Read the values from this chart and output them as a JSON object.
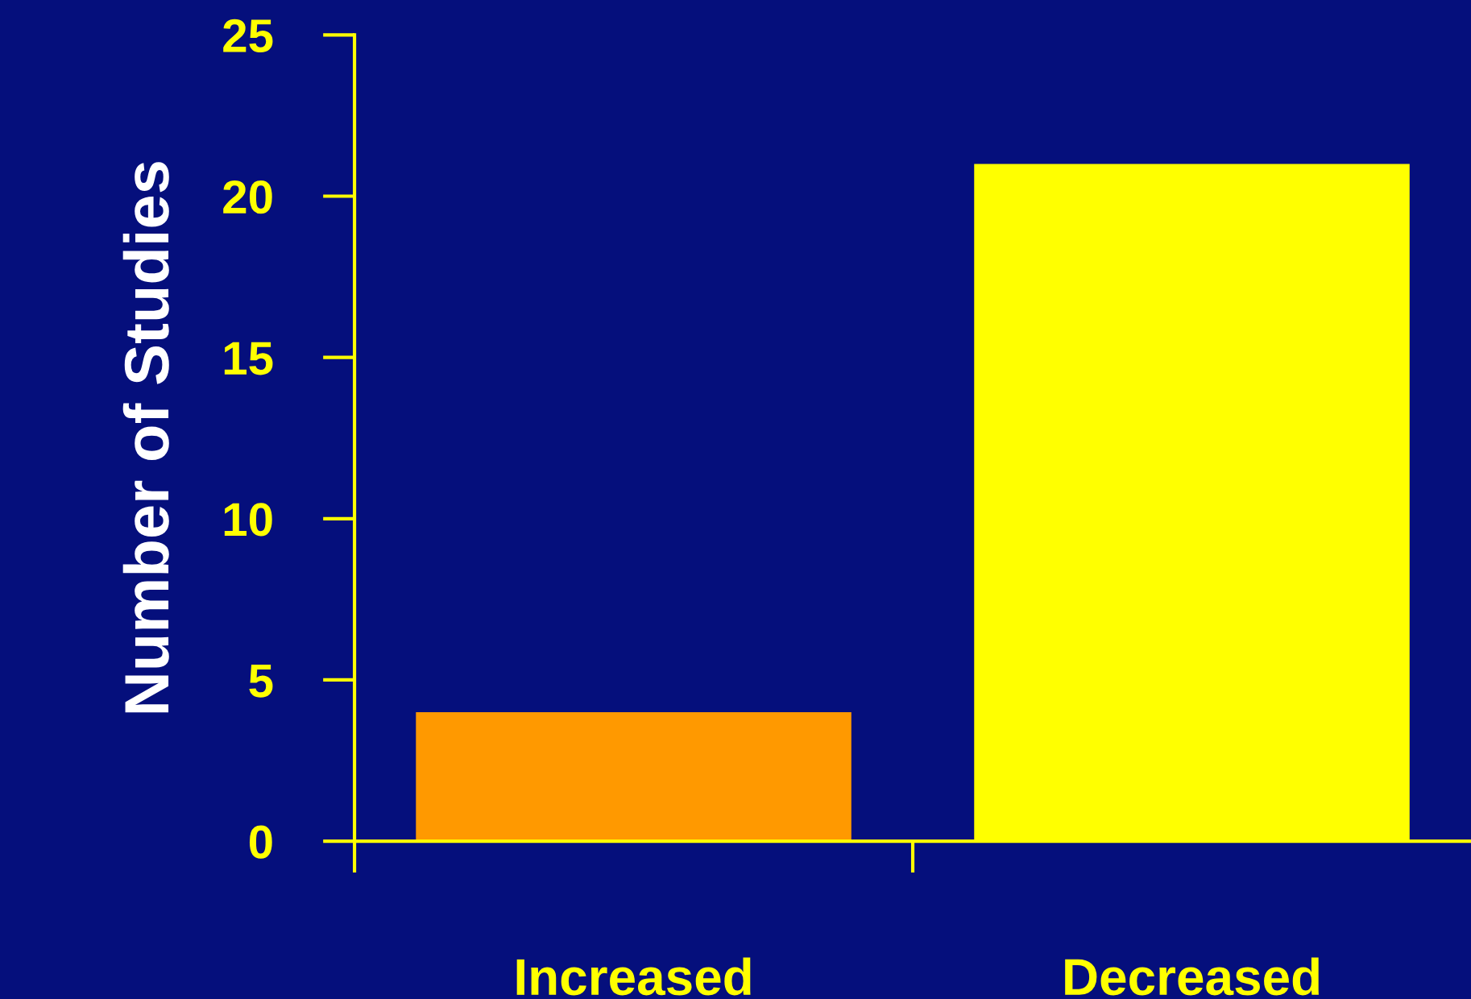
{
  "chart_data": {
    "type": "bar",
    "ylabel": "Number of Studies",
    "categories": [
      "Increased",
      "Decreased"
    ],
    "values": [
      4,
      21
    ],
    "colors": [
      "#ff9900",
      "#ffff00"
    ],
    "ylim": [
      0,
      25
    ],
    "yticks": [
      0,
      5,
      10,
      15,
      20,
      25
    ],
    "grid": false
  }
}
